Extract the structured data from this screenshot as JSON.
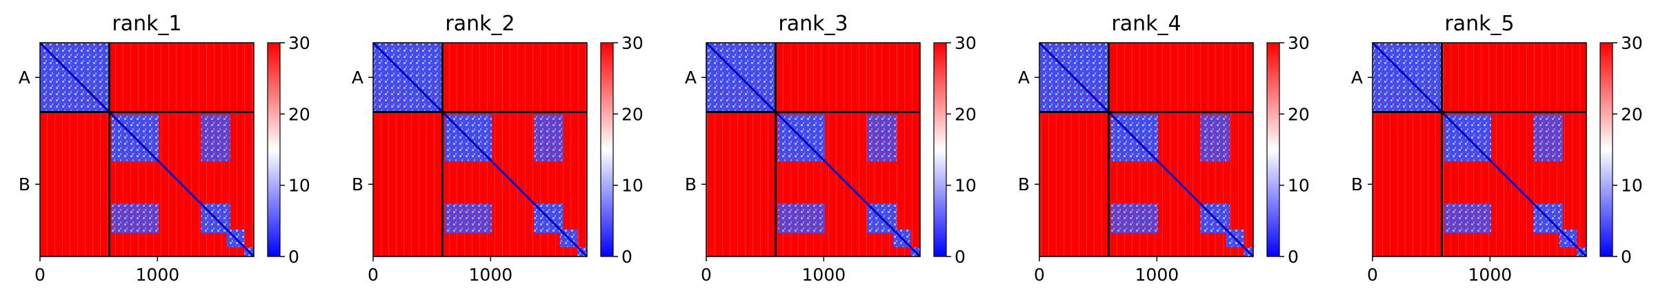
{
  "chart_data": [
    {
      "type": "heatmap",
      "title": "rank_1",
      "x_ticks": [
        {
          "value": 0,
          "label": "0"
        },
        {
          "value": 1000,
          "label": "1000"
        }
      ],
      "y_ticks": [
        {
          "label": "A"
        },
        {
          "label": "B"
        }
      ],
      "xlim": [
        0,
        1820
      ],
      "chain_break": 590,
      "colorbar": {
        "range": [
          0,
          30
        ],
        "ticks": [
          0,
          10,
          20,
          30
        ],
        "colors": [
          "#0000ff",
          "#ffffff",
          "#ff0000"
        ]
      },
      "blue_blocks": [
        [
          0,
          590
        ],
        [
          610,
          1010
        ],
        [
          1370,
          1620
        ],
        [
          1590,
          1740
        ],
        [
          1740,
          1820
        ]
      ],
      "blue_offdiag": [
        [
          610,
          1010,
          1370,
          1620
        ]
      ]
    },
    {
      "type": "heatmap",
      "title": "rank_2",
      "x_ticks": [
        {
          "value": 0,
          "label": "0"
        },
        {
          "value": 1000,
          "label": "1000"
        }
      ],
      "y_ticks": [
        {
          "label": "A"
        },
        {
          "label": "B"
        }
      ],
      "xlim": [
        0,
        1820
      ],
      "chain_break": 590,
      "colorbar": {
        "range": [
          0,
          30
        ],
        "ticks": [
          0,
          10,
          20,
          30
        ],
        "colors": [
          "#0000ff",
          "#ffffff",
          "#ff0000"
        ]
      },
      "blue_blocks": [
        [
          0,
          590
        ],
        [
          610,
          1010
        ],
        [
          1370,
          1620
        ],
        [
          1590,
          1740
        ],
        [
          1740,
          1820
        ]
      ],
      "blue_offdiag": [
        [
          610,
          1010,
          1370,
          1620
        ]
      ]
    },
    {
      "type": "heatmap",
      "title": "rank_3",
      "x_ticks": [
        {
          "value": 0,
          "label": "0"
        },
        {
          "value": 1000,
          "label": "1000"
        }
      ],
      "y_ticks": [
        {
          "label": "A"
        },
        {
          "label": "B"
        }
      ],
      "xlim": [
        0,
        1820
      ],
      "chain_break": 590,
      "colorbar": {
        "range": [
          0,
          30
        ],
        "ticks": [
          0,
          10,
          20,
          30
        ],
        "colors": [
          "#0000ff",
          "#ffffff",
          "#ff0000"
        ]
      },
      "blue_blocks": [
        [
          0,
          590
        ],
        [
          610,
          1010
        ],
        [
          1370,
          1620
        ],
        [
          1590,
          1740
        ],
        [
          1740,
          1820
        ]
      ],
      "blue_offdiag": [
        [
          610,
          1010,
          1370,
          1620
        ]
      ]
    },
    {
      "type": "heatmap",
      "title": "rank_4",
      "x_ticks": [
        {
          "value": 0,
          "label": "0"
        },
        {
          "value": 1000,
          "label": "1000"
        }
      ],
      "y_ticks": [
        {
          "label": "A"
        },
        {
          "label": "B"
        }
      ],
      "xlim": [
        0,
        1820
      ],
      "chain_break": 590,
      "colorbar": {
        "range": [
          0,
          30
        ],
        "ticks": [
          0,
          10,
          20,
          30
        ],
        "colors": [
          "#0000ff",
          "#ffffff",
          "#ff0000"
        ]
      },
      "blue_blocks": [
        [
          0,
          590
        ],
        [
          610,
          1010
        ],
        [
          1370,
          1620
        ],
        [
          1590,
          1740
        ],
        [
          1740,
          1820
        ]
      ],
      "blue_offdiag": [
        [
          610,
          1010,
          1370,
          1620
        ]
      ]
    },
    {
      "type": "heatmap",
      "title": "rank_5",
      "x_ticks": [
        {
          "value": 0,
          "label": "0"
        },
        {
          "value": 1000,
          "label": "1000"
        }
      ],
      "y_ticks": [
        {
          "label": "A"
        },
        {
          "label": "B"
        }
      ],
      "xlim": [
        0,
        1820
      ],
      "chain_break": 590,
      "colorbar": {
        "range": [
          0,
          30
        ],
        "ticks": [
          0,
          10,
          20,
          30
        ],
        "colors": [
          "#0000ff",
          "#ffffff",
          "#ff0000"
        ]
      },
      "blue_blocks": [
        [
          0,
          590
        ],
        [
          610,
          1010
        ],
        [
          1370,
          1620
        ],
        [
          1590,
          1740
        ],
        [
          1740,
          1820
        ]
      ],
      "blue_offdiag": [
        [
          610,
          1010,
          1370,
          1620
        ]
      ]
    }
  ]
}
